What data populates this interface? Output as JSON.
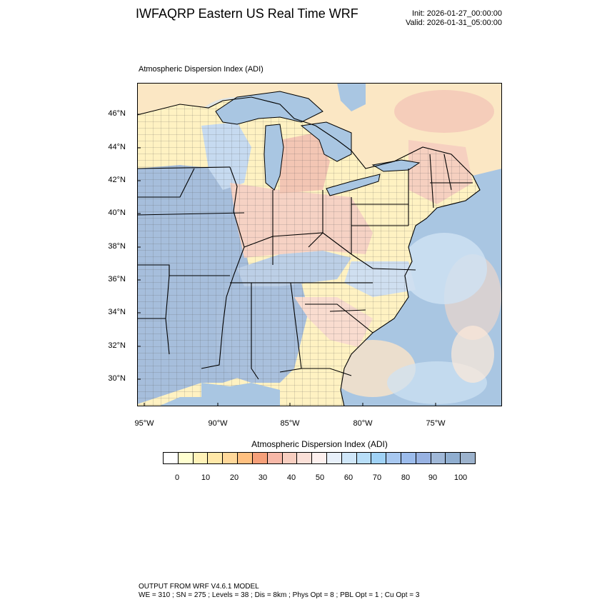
{
  "header": {
    "title": "IWFAQRP Eastern US Real Time WRF",
    "init": "Init: 2026-01-27_00:00:00",
    "valid": "Valid: 2026-01-31_05:00:00"
  },
  "map": {
    "subtitle": "Atmospheric Dispersion Index   (ADI)",
    "lat_labels": [
      "46°N",
      "44°N",
      "42°N",
      "40°N",
      "38°N",
      "36°N",
      "34°N",
      "32°N",
      "30°N"
    ],
    "lon_labels": [
      "95°W",
      "90°W",
      "85°W",
      "80°W",
      "75°W"
    ],
    "colors": {
      "ocean": "#a9c6e2",
      "water_light": "#cce0f2",
      "low": "#fff6c8",
      "mid": "#f6c6b6",
      "high": "#9fb8da",
      "lake": "#a9c6e2"
    }
  },
  "colorbar": {
    "title": "Atmospheric Dispersion Index  (ADI)",
    "colors": [
      "#ffffff",
      "#ffffd0",
      "#fff2b8",
      "#ffe8a8",
      "#ffd89a",
      "#ffc080",
      "#f6a07a",
      "#f7b8a8",
      "#f8cec0",
      "#fbe0d8",
      "#fdf0ee",
      "#e8f0fa",
      "#cfe6f8",
      "#b8def8",
      "#a0d2f6",
      "#a8c8f0",
      "#9cbcec",
      "#98b2e2",
      "#a0b8d8",
      "#90aed0",
      "#9cb2cc"
    ],
    "labels": [
      "0",
      "10",
      "20",
      "30",
      "40",
      "50",
      "60",
      "70",
      "80",
      "90",
      "100"
    ]
  },
  "footer": {
    "line1": "OUTPUT FROM WRF V4.6.1 MODEL",
    "line2": "WE = 310 ; SN = 275 ; Levels = 38 ; Dis = 8km ; Phys Opt = 8 ; PBL Opt = 1 ; Cu Opt = 3"
  }
}
